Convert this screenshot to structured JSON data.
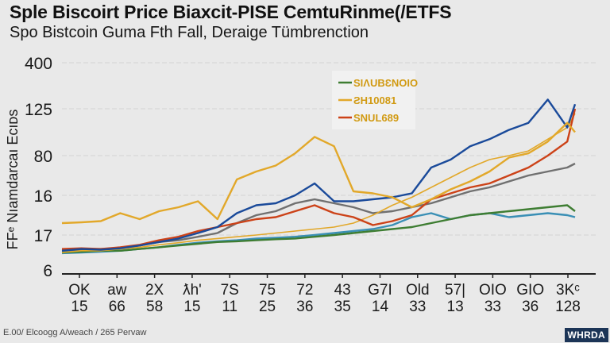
{
  "header": {
    "title": "Sple Biscoirt Price Biaxcit-PISE CemtuRinme(/ETFS",
    "subtitle": "Spo Bistcoin Guma Fth Fall, Deraige Tümbrenction"
  },
  "footer": {
    "source_text": "E.00/ Elcoogg A/weach /  265 Pervaw",
    "badge": "WHRDA"
  },
  "colors": {
    "background": "#e9e9e9",
    "blue": "#1a4a9a",
    "gold": "#e2a82a",
    "red": "#cc4218",
    "green": "#3e7d32",
    "teal": "#3a8fb5",
    "gray": "#707070",
    "lightblue": "#5b9bd5",
    "badge": "#1c3557"
  },
  "chart_data": {
    "type": "line",
    "title": "Sple Biscoirt Price Biaxcit-PISE CemtuRinme(/ETFS",
    "subtitle": "Spo Bistcoin Guma Fth Fall, Deraige Tümbrenction",
    "xlabel": "",
    "ylabel": "FFᵉ Nıamdarcaı Eᴄıᴅs",
    "y_tick_labels": [
      "6",
      "17",
      "16",
      "80",
      "125",
      "400"
    ],
    "x_tick_labels": [
      {
        "top": "OK",
        "bottom": "15"
      },
      {
        "top": "aw",
        "bottom": "66"
      },
      {
        "top": "2X",
        "bottom": "58"
      },
      {
        "top": "ƛh'",
        "bottom": "15"
      },
      {
        "top": "7S",
        "bottom": "11"
      },
      {
        "top": "75",
        "bottom": "25"
      },
      {
        "top": "72",
        "bottom": "36"
      },
      {
        "top": "43",
        "bottom": "35"
      },
      {
        "top": "G7I",
        "bottom": "14"
      },
      {
        "top": "Old",
        "bottom": "33"
      },
      {
        "top": "57|",
        "bottom": "13"
      },
      {
        "top": "OIO",
        "bottom": "33"
      },
      {
        "top": "GIO",
        "bottom": "36"
      },
      {
        "top": "3Kᶜ",
        "bottom": "128"
      }
    ],
    "y_scale": "categorical levels 0-5 (tick index)",
    "ylim": [
      0,
      5.2
    ],
    "grid": true,
    "legend": {
      "position": "top-center",
      "entries": [
        {
          "label": "SIΛUBƐNOIO",
          "color": "#3e7d32"
        },
        {
          "label": "ƧH10081",
          "color": "#e2a82a"
        },
        {
          "label": "SNUL689",
          "color": "#cc4218"
        }
      ]
    },
    "x": [
      0,
      0.5,
      1,
      1.5,
      2,
      2.5,
      3,
      3.5,
      4,
      4.5,
      5,
      5.5,
      6,
      6.5,
      7,
      7.5,
      8,
      8.5,
      9,
      9.5,
      10,
      10.5,
      11,
      11.5,
      12,
      12.5,
      13,
      13.2
    ],
    "series": [
      {
        "name": "gold-main",
        "color": "#e2a82a",
        "values": [
          1.3,
          1.32,
          1.35,
          1.55,
          1.4,
          1.6,
          1.7,
          1.85,
          1.4,
          2.4,
          2.6,
          2.75,
          3.05,
          3.4,
          3.2,
          2.1,
          2.05,
          1.95,
          1.7,
          1.9,
          2.15,
          2.35,
          2.6,
          2.95,
          3.05,
          3.3,
          3.7,
          3.5
        ]
      },
      {
        "name": "blue",
        "color": "#1a4a9a",
        "values": [
          0.55,
          0.6,
          0.58,
          0.62,
          0.7,
          0.8,
          0.9,
          1.05,
          1.2,
          1.55,
          1.75,
          1.8,
          2.0,
          2.3,
          1.85,
          1.85,
          1.9,
          1.95,
          2.05,
          2.7,
          2.9,
          3.2,
          3.35,
          3.55,
          3.7,
          4.2,
          3.6,
          4.1
        ]
      },
      {
        "name": "red",
        "color": "#cc4218",
        "values": [
          0.6,
          0.62,
          0.6,
          0.65,
          0.72,
          0.85,
          0.95,
          1.1,
          1.2,
          1.3,
          1.4,
          1.45,
          1.6,
          1.75,
          1.55,
          1.45,
          1.25,
          1.35,
          1.5,
          1.9,
          2.05,
          2.2,
          2.3,
          2.5,
          2.7,
          3.0,
          3.3,
          4.0
        ]
      },
      {
        "name": "gray",
        "color": "#707070",
        "values": [
          0.55,
          0.58,
          0.6,
          0.62,
          0.7,
          0.8,
          0.85,
          0.95,
          1.05,
          1.3,
          1.5,
          1.6,
          1.8,
          1.9,
          1.8,
          1.7,
          1.55,
          1.6,
          1.7,
          1.8,
          1.95,
          2.1,
          2.2,
          2.35,
          2.5,
          2.6,
          2.7,
          2.8
        ]
      },
      {
        "name": "green",
        "color": "#3e7d32",
        "values": [
          0.5,
          0.52,
          0.55,
          0.55,
          0.6,
          0.65,
          0.7,
          0.75,
          0.8,
          0.82,
          0.85,
          0.88,
          0.9,
          0.95,
          1.0,
          1.05,
          1.1,
          1.15,
          1.2,
          1.3,
          1.4,
          1.5,
          1.55,
          1.6,
          1.65,
          1.7,
          1.75,
          1.6
        ]
      },
      {
        "name": "teal",
        "color": "#3a8fb5",
        "values": [
          0.48,
          0.5,
          0.52,
          0.55,
          0.6,
          0.65,
          0.72,
          0.78,
          0.82,
          0.85,
          0.9,
          0.92,
          0.95,
          1.0,
          1.05,
          1.1,
          1.15,
          1.25,
          1.45,
          1.55,
          1.4,
          1.5,
          1.55,
          1.45,
          1.5,
          1.55,
          1.5,
          1.45
        ]
      },
      {
        "name": "gold-secondary",
        "color": "#e2a82a",
        "values": [
          0.5,
          0.55,
          0.55,
          0.6,
          0.65,
          0.72,
          0.78,
          0.85,
          0.9,
          0.95,
          1.0,
          1.05,
          1.1,
          1.15,
          1.2,
          1.3,
          1.5,
          1.75,
          1.95,
          2.2,
          2.45,
          2.7,
          2.9,
          3.0,
          3.1,
          3.35,
          3.6,
          3.9
        ]
      }
    ]
  }
}
